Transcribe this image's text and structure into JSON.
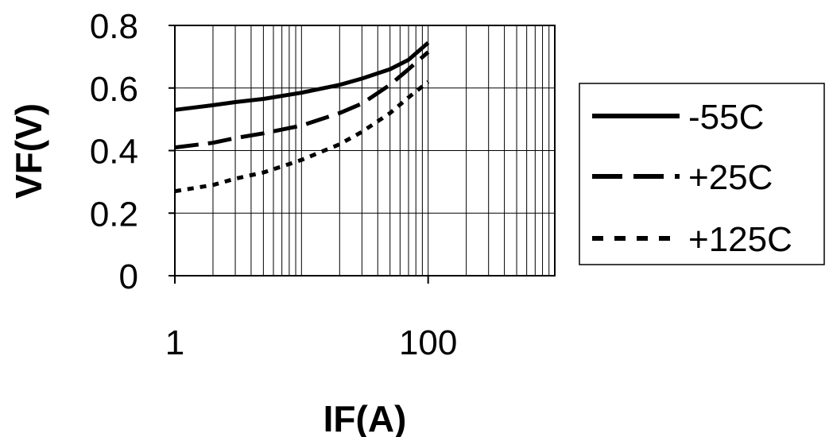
{
  "chart_data": {
    "type": "line",
    "title": "",
    "xlabel": "IF(A)",
    "ylabel": "VF(V)",
    "x_scale": "log",
    "xlim": [
      1,
      1000
    ],
    "ylim": [
      0,
      0.8
    ],
    "x_ticks": [
      1,
      100
    ],
    "x_tick_labels": [
      "1",
      "100"
    ],
    "y_ticks": [
      0,
      0.2,
      0.4,
      0.6,
      0.8
    ],
    "y_tick_labels": [
      "0",
      "0.2",
      "0.4",
      "0.6",
      "0.8"
    ],
    "grid": true,
    "legend_position": "right",
    "series": [
      {
        "name": "-55C",
        "style": "solid",
        "color": "#000000",
        "x": [
          1,
          2,
          3,
          5,
          10,
          20,
          30,
          50,
          70,
          100
        ],
        "y": [
          0.53,
          0.545,
          0.555,
          0.565,
          0.585,
          0.61,
          0.63,
          0.66,
          0.69,
          0.745
        ]
      },
      {
        "name": "+25C",
        "style": "dashed",
        "color": "#000000",
        "x": [
          1,
          2,
          3,
          5,
          10,
          20,
          30,
          50,
          70,
          100
        ],
        "y": [
          0.41,
          0.425,
          0.44,
          0.455,
          0.48,
          0.52,
          0.55,
          0.61,
          0.66,
          0.715
        ]
      },
      {
        "name": "+125C",
        "style": "dotted",
        "color": "#000000",
        "x": [
          1,
          2,
          3,
          5,
          10,
          20,
          30,
          50,
          70,
          100
        ],
        "y": [
          0.27,
          0.29,
          0.31,
          0.33,
          0.37,
          0.42,
          0.46,
          0.52,
          0.57,
          0.62
        ]
      }
    ]
  }
}
